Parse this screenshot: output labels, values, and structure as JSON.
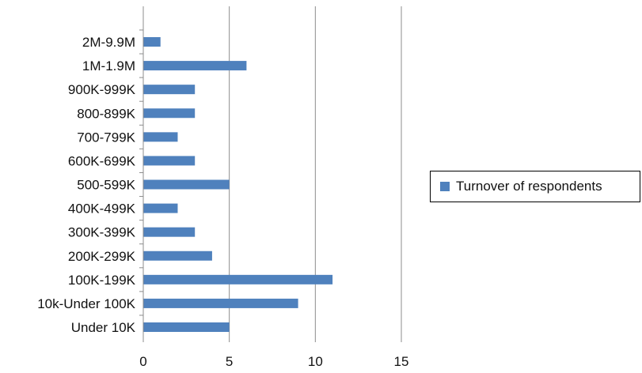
{
  "chart_data": {
    "type": "bar",
    "orientation": "horizontal",
    "title": "",
    "xlabel": "",
    "ylabel": "",
    "categories": [
      "2M-9.9M",
      "1M-1.9M",
      "900K-999K",
      "800-899K",
      "700-799K",
      "600K-699K",
      "500-599K",
      "400K-499K",
      "300K-399K",
      "200K-299K",
      "100K-199K",
      "10k-Under 100K",
      "Under 10K"
    ],
    "series": [
      {
        "name": "Turnover of respondents",
        "color": "#4f81bd",
        "values": [
          1,
          6,
          3,
          3,
          2,
          3,
          5,
          2,
          3,
          4,
          11,
          9,
          5
        ]
      }
    ],
    "xlim": [
      0,
      15
    ],
    "xticks": [
      "0",
      "5",
      "10",
      "15"
    ],
    "grid": "vertical major gridlines",
    "legend_position": "right"
  }
}
